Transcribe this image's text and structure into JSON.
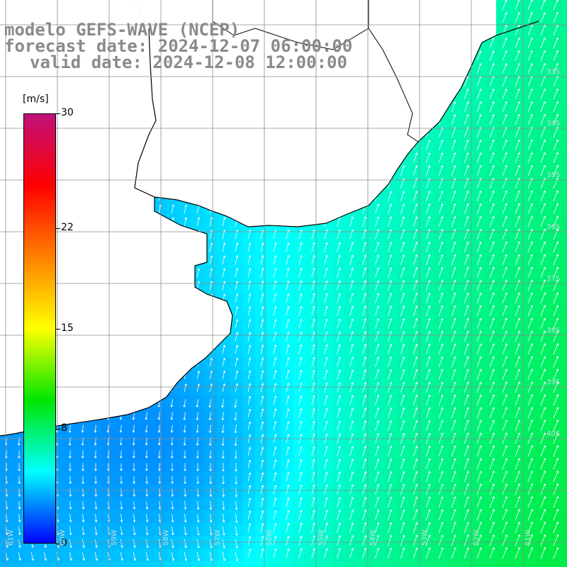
{
  "title": {
    "line1": "modelo GEFS-WAVE (NCEP)",
    "line2": "forecast date: 2024-12-07 06:00:00",
    "line3": "valid date: 2024-12-08 12:00:00"
  },
  "colorbar": {
    "unit": "[m/s]",
    "ticks": [
      {
        "value": 30,
        "label": "30"
      },
      {
        "value": 22,
        "label": "22"
      },
      {
        "value": 15,
        "label": "15"
      },
      {
        "value": 8,
        "label": "8"
      },
      {
        "value": 0,
        "label": "0"
      }
    ],
    "colors": [
      "#0000ff",
      "#00ffff",
      "#00e600",
      "#ffff00",
      "#ff8000",
      "#ff0000",
      "#c0107a"
    ]
  },
  "lat_labels": [
    "33S",
    "34S",
    "35S",
    "36S",
    "37S",
    "38S",
    "39S",
    "40S"
  ],
  "lon_labels": [
    "61W",
    "60W",
    "59W",
    "58W",
    "57W",
    "56W",
    "55W",
    "54W",
    "53W",
    "52W",
    "51W"
  ],
  "colors": {
    "land": "#ffffff",
    "grid": "#8c8c8c",
    "coast": "#000000",
    "arrow": "#ffffff"
  }
}
